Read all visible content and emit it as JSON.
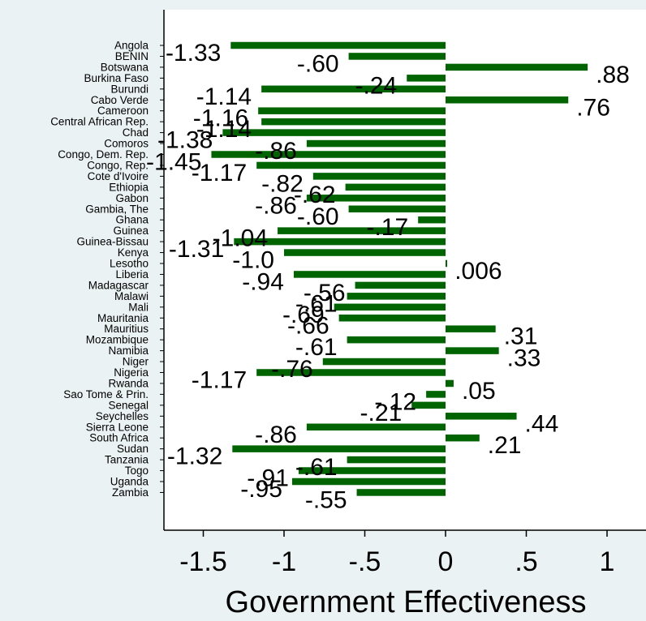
{
  "chart_data": {
    "type": "bar",
    "orientation": "horizontal",
    "xlabel": "Government Effectiveness",
    "xlim": [
      -1.75,
      1.25
    ],
    "xticks": [
      -1.5,
      -1,
      -0.5,
      0,
      0.5,
      1
    ],
    "xtick_labels": [
      "-1.5",
      "-1",
      "-.5",
      "0",
      ".5",
      "1"
    ],
    "grid": false,
    "bar_color": "#006400",
    "plot_bg": "#ffffff",
    "outer_bg": "#eaf2f3",
    "categories": [
      "Angola",
      "BENIN",
      "Botswana",
      "Burkina Faso",
      "Burundi",
      "Cabo Verde",
      "Cameroon",
      "Central African Rep.",
      "Chad",
      "Comoros",
      "Congo, Dem. Rep.",
      "Congo, Rep.",
      "Cote d'Ivoire",
      "Ethiopia",
      "Gabon",
      "Gambia, The",
      "Ghana",
      "Guinea",
      "Guinea-Bissau",
      "Kenya",
      "Lesotho",
      "Liberia",
      "Madagascar",
      "Malawi",
      "Mali",
      "Mauritania",
      "Mauritius",
      "Mozambique",
      "Namibia",
      "Niger",
      "Nigeria",
      "Rwanda",
      "Sao Tome & Prin.",
      "Senegal",
      "Seychelles",
      "Sierra Leone",
      "South Africa",
      "Sudan",
      "Tanzania",
      "Togo",
      "Uganda",
      "Zambia"
    ],
    "values": [
      -1.33,
      -0.6,
      0.88,
      -0.24,
      -1.14,
      0.76,
      -1.16,
      -1.14,
      -1.38,
      -0.86,
      -1.45,
      -1.17,
      -0.82,
      -0.62,
      -0.86,
      -0.6,
      -0.17,
      -1.04,
      -1.31,
      -1.0,
      0.006,
      -0.94,
      -0.56,
      -0.61,
      -0.69,
      -0.66,
      0.31,
      -0.61,
      0.33,
      -0.76,
      -1.17,
      0.05,
      -0.12,
      -0.21,
      0.44,
      -0.86,
      0.21,
      -1.32,
      -0.61,
      -0.91,
      -0.95,
      -0.55
    ],
    "value_labels": [
      "-1.33",
      "-.60",
      ".88",
      "-.24",
      "-1.14",
      ".76",
      "-1.16",
      "-1.14",
      "-1.38",
      "-.86",
      "-1.45",
      "-1.17",
      "-.82",
      "-.62",
      "-.86",
      "-.60",
      "-.17",
      "-1.04",
      "-1.31",
      "-1.0",
      ".006",
      "-.94",
      "-.56",
      "-.61",
      "-.69",
      "-.66",
      ".31",
      "-.61",
      ".33",
      "-.76",
      "-1.17",
      ".05",
      "-.12",
      "-.21",
      ".44",
      "-.86",
      ".21",
      "-1.32",
      "-.61",
      "-.91",
      "-.95",
      "-.55"
    ]
  }
}
